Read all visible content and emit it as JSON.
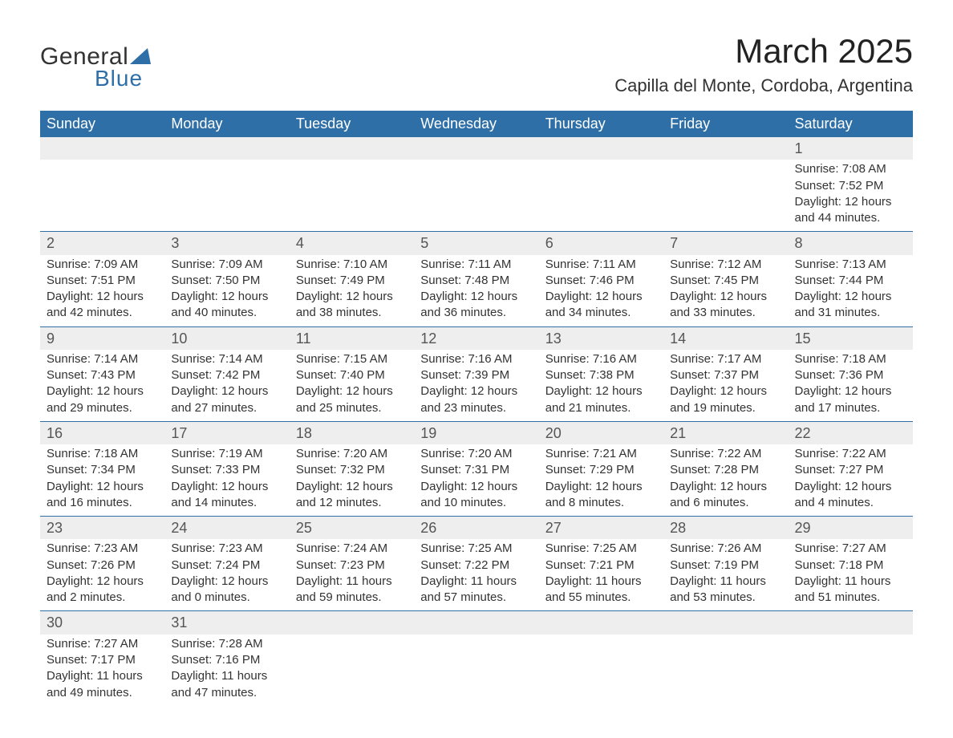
{
  "logo": {
    "text_general": "General",
    "text_blue": "Blue",
    "sail_color": "#2f6fa7"
  },
  "title": {
    "month": "March 2025",
    "location": "Capilla del Monte, Cordoba, Argentina"
  },
  "colors": {
    "header_bg": "#2f6fa7",
    "header_text": "#ffffff",
    "daynum_bg": "#eeeeee",
    "border": "#2f6fa7",
    "text": "#333333"
  },
  "typography": {
    "month_fontsize_pt": 32,
    "location_fontsize_pt": 17,
    "weekday_fontsize_pt": 14,
    "daynum_fontsize_pt": 14,
    "body_fontsize_pt": 11,
    "font_family": "Arial"
  },
  "weekdays": [
    "Sunday",
    "Monday",
    "Tuesday",
    "Wednesday",
    "Thursday",
    "Friday",
    "Saturday"
  ],
  "labels": {
    "sunrise_prefix": "Sunrise: ",
    "sunset_prefix": "Sunset: ",
    "daylight_prefix": "Daylight: "
  },
  "weeks": [
    [
      {
        "day": "",
        "sunrise": "",
        "sunset": "",
        "daylight": ""
      },
      {
        "day": "",
        "sunrise": "",
        "sunset": "",
        "daylight": ""
      },
      {
        "day": "",
        "sunrise": "",
        "sunset": "",
        "daylight": ""
      },
      {
        "day": "",
        "sunrise": "",
        "sunset": "",
        "daylight": ""
      },
      {
        "day": "",
        "sunrise": "",
        "sunset": "",
        "daylight": ""
      },
      {
        "day": "",
        "sunrise": "",
        "sunset": "",
        "daylight": ""
      },
      {
        "day": "1",
        "sunrise": "7:08 AM",
        "sunset": "7:52 PM",
        "daylight": "12 hours and 44 minutes."
      }
    ],
    [
      {
        "day": "2",
        "sunrise": "7:09 AM",
        "sunset": "7:51 PM",
        "daylight": "12 hours and 42 minutes."
      },
      {
        "day": "3",
        "sunrise": "7:09 AM",
        "sunset": "7:50 PM",
        "daylight": "12 hours and 40 minutes."
      },
      {
        "day": "4",
        "sunrise": "7:10 AM",
        "sunset": "7:49 PM",
        "daylight": "12 hours and 38 minutes."
      },
      {
        "day": "5",
        "sunrise": "7:11 AM",
        "sunset": "7:48 PM",
        "daylight": "12 hours and 36 minutes."
      },
      {
        "day": "6",
        "sunrise": "7:11 AM",
        "sunset": "7:46 PM",
        "daylight": "12 hours and 34 minutes."
      },
      {
        "day": "7",
        "sunrise": "7:12 AM",
        "sunset": "7:45 PM",
        "daylight": "12 hours and 33 minutes."
      },
      {
        "day": "8",
        "sunrise": "7:13 AM",
        "sunset": "7:44 PM",
        "daylight": "12 hours and 31 minutes."
      }
    ],
    [
      {
        "day": "9",
        "sunrise": "7:14 AM",
        "sunset": "7:43 PM",
        "daylight": "12 hours and 29 minutes."
      },
      {
        "day": "10",
        "sunrise": "7:14 AM",
        "sunset": "7:42 PM",
        "daylight": "12 hours and 27 minutes."
      },
      {
        "day": "11",
        "sunrise": "7:15 AM",
        "sunset": "7:40 PM",
        "daylight": "12 hours and 25 minutes."
      },
      {
        "day": "12",
        "sunrise": "7:16 AM",
        "sunset": "7:39 PM",
        "daylight": "12 hours and 23 minutes."
      },
      {
        "day": "13",
        "sunrise": "7:16 AM",
        "sunset": "7:38 PM",
        "daylight": "12 hours and 21 minutes."
      },
      {
        "day": "14",
        "sunrise": "7:17 AM",
        "sunset": "7:37 PM",
        "daylight": "12 hours and 19 minutes."
      },
      {
        "day": "15",
        "sunrise": "7:18 AM",
        "sunset": "7:36 PM",
        "daylight": "12 hours and 17 minutes."
      }
    ],
    [
      {
        "day": "16",
        "sunrise": "7:18 AM",
        "sunset": "7:34 PM",
        "daylight": "12 hours and 16 minutes."
      },
      {
        "day": "17",
        "sunrise": "7:19 AM",
        "sunset": "7:33 PM",
        "daylight": "12 hours and 14 minutes."
      },
      {
        "day": "18",
        "sunrise": "7:20 AM",
        "sunset": "7:32 PM",
        "daylight": "12 hours and 12 minutes."
      },
      {
        "day": "19",
        "sunrise": "7:20 AM",
        "sunset": "7:31 PM",
        "daylight": "12 hours and 10 minutes."
      },
      {
        "day": "20",
        "sunrise": "7:21 AM",
        "sunset": "7:29 PM",
        "daylight": "12 hours and 8 minutes."
      },
      {
        "day": "21",
        "sunrise": "7:22 AM",
        "sunset": "7:28 PM",
        "daylight": "12 hours and 6 minutes."
      },
      {
        "day": "22",
        "sunrise": "7:22 AM",
        "sunset": "7:27 PM",
        "daylight": "12 hours and 4 minutes."
      }
    ],
    [
      {
        "day": "23",
        "sunrise": "7:23 AM",
        "sunset": "7:26 PM",
        "daylight": "12 hours and 2 minutes."
      },
      {
        "day": "24",
        "sunrise": "7:23 AM",
        "sunset": "7:24 PM",
        "daylight": "12 hours and 0 minutes."
      },
      {
        "day": "25",
        "sunrise": "7:24 AM",
        "sunset": "7:23 PM",
        "daylight": "11 hours and 59 minutes."
      },
      {
        "day": "26",
        "sunrise": "7:25 AM",
        "sunset": "7:22 PM",
        "daylight": "11 hours and 57 minutes."
      },
      {
        "day": "27",
        "sunrise": "7:25 AM",
        "sunset": "7:21 PM",
        "daylight": "11 hours and 55 minutes."
      },
      {
        "day": "28",
        "sunrise": "7:26 AM",
        "sunset": "7:19 PM",
        "daylight": "11 hours and 53 minutes."
      },
      {
        "day": "29",
        "sunrise": "7:27 AM",
        "sunset": "7:18 PM",
        "daylight": "11 hours and 51 minutes."
      }
    ],
    [
      {
        "day": "30",
        "sunrise": "7:27 AM",
        "sunset": "7:17 PM",
        "daylight": "11 hours and 49 minutes."
      },
      {
        "day": "31",
        "sunrise": "7:28 AM",
        "sunset": "7:16 PM",
        "daylight": "11 hours and 47 minutes."
      },
      {
        "day": "",
        "sunrise": "",
        "sunset": "",
        "daylight": ""
      },
      {
        "day": "",
        "sunrise": "",
        "sunset": "",
        "daylight": ""
      },
      {
        "day": "",
        "sunrise": "",
        "sunset": "",
        "daylight": ""
      },
      {
        "day": "",
        "sunrise": "",
        "sunset": "",
        "daylight": ""
      },
      {
        "day": "",
        "sunrise": "",
        "sunset": "",
        "daylight": ""
      }
    ]
  ]
}
